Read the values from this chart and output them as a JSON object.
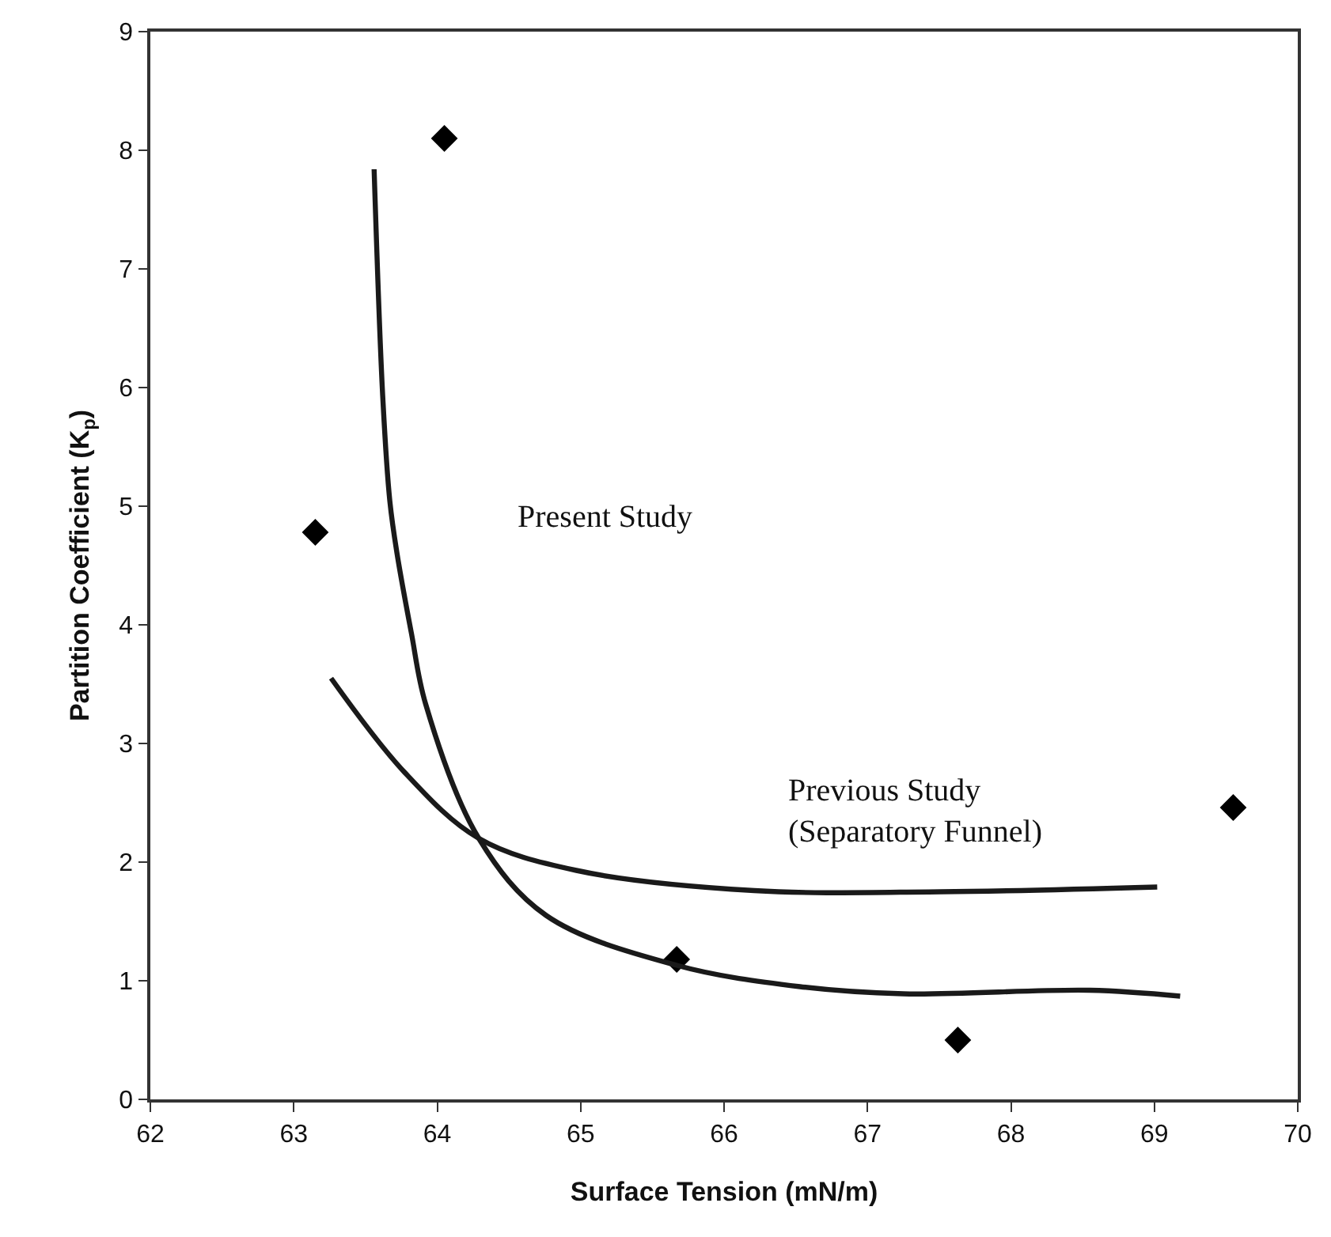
{
  "chart_data": {
    "type": "scatter",
    "xlabel": "Surface Tension (mN/m)",
    "ylabel": "Partition Coefficient (K$_{p}$)",
    "xlim": [
      62,
      70
    ],
    "xticks": [
      62,
      63,
      64,
      65,
      66,
      67,
      68,
      69,
      70
    ],
    "ylim": [
      0,
      9
    ],
    "yticks": [
      0,
      1,
      2,
      3,
      4,
      5,
      6,
      7,
      8,
      9
    ],
    "series": [
      {
        "marker": "diamond",
        "color": "#000000",
        "x": [
          63.15,
          64.05,
          65.67,
          67.63,
          69.55
        ],
        "values": [
          4.78,
          8.1,
          1.18,
          0.5,
          2.46
        ]
      },
      {
        "type": "line",
        "marker": "none",
        "line_style": "solid",
        "color": "#1a1a1a",
        "x": [
          63.56,
          63.62,
          63.67,
          63.72,
          63.82,
          63.92,
          64.29,
          64.76,
          65.67,
          66.53,
          67.25,
          68.55,
          69.18
        ],
        "values": [
          7.84,
          5.93,
          5.04,
          4.6,
          3.93,
          3.33,
          2.2,
          1.55,
          1.13,
          0.95,
          0.89,
          0.92,
          0.87
        ]
      },
      {
        "type": "line",
        "marker": "none",
        "line_style": "solid",
        "color": "#1a1a1a",
        "x": [
          63.26,
          63.77,
          64.29,
          64.97,
          66.21,
          67.51,
          69.02
        ],
        "values": [
          3.55,
          2.76,
          2.2,
          1.93,
          1.76,
          1.75,
          1.79
        ]
      }
    ],
    "annotations": [
      "Present Study",
      "Previous Study\n(Separatory Funnel)"
    ]
  }
}
